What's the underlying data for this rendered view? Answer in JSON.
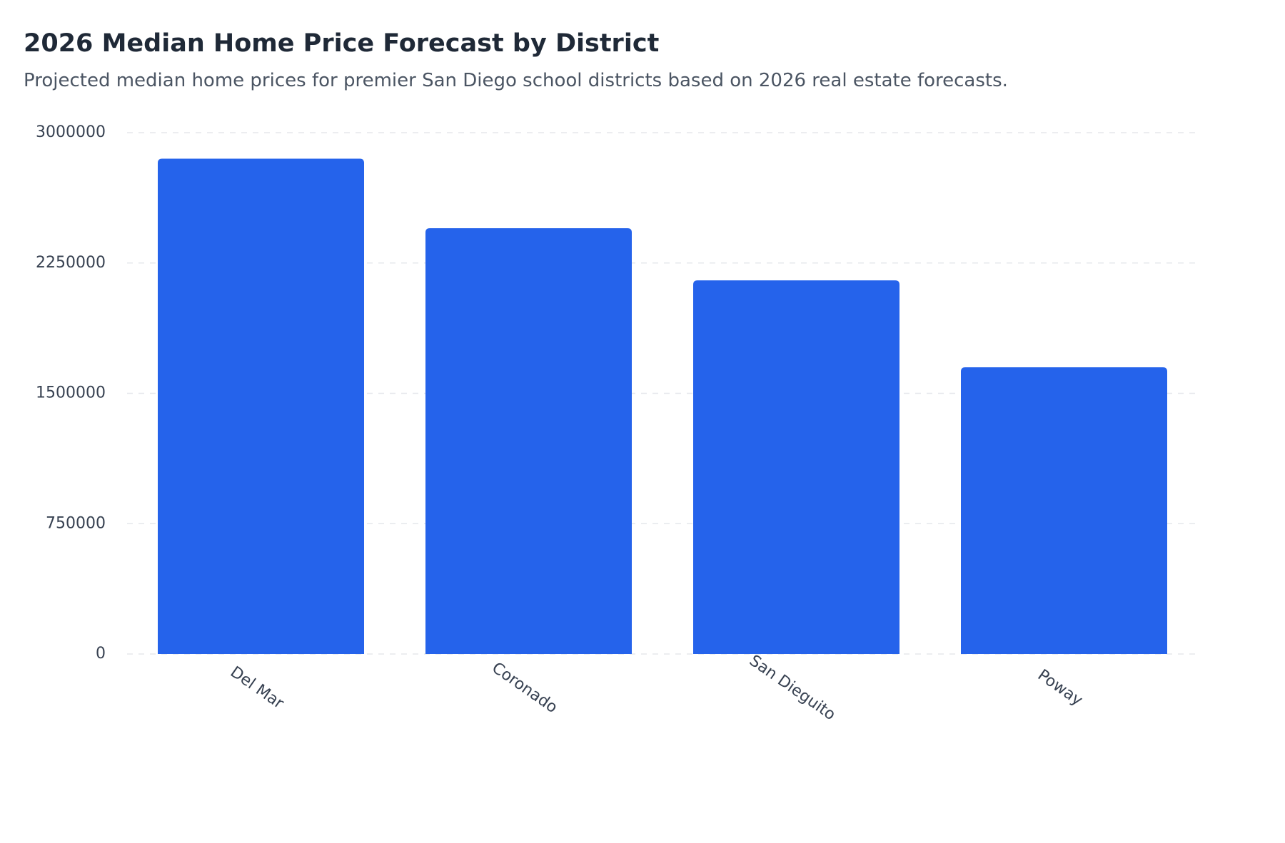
{
  "header": {
    "title": "2026 Median Home Price Forecast by District",
    "subtitle": "Projected median home prices for premier San Diego school districts based on 2026 real estate forecasts."
  },
  "chart_data": {
    "type": "bar",
    "title": "2026 Median Home Price Forecast by District",
    "subtitle": "Projected median home prices for premier San Diego school districts based on 2026 real estate forecasts.",
    "xlabel": "",
    "ylabel": "",
    "categories": [
      "Del Mar",
      "Coronado",
      "San Dieguito",
      "Poway"
    ],
    "values": [
      2850000,
      2450000,
      2150000,
      1650000
    ],
    "ylim": [
      0,
      3000000
    ],
    "yticks": [
      0,
      750000,
      1500000,
      2250000,
      3000000
    ],
    "ytick_labels": [
      "0",
      "750000",
      "1500000",
      "2250000",
      "3000000"
    ],
    "grid": true,
    "legend": "none",
    "bar_color": "#2563eb"
  }
}
